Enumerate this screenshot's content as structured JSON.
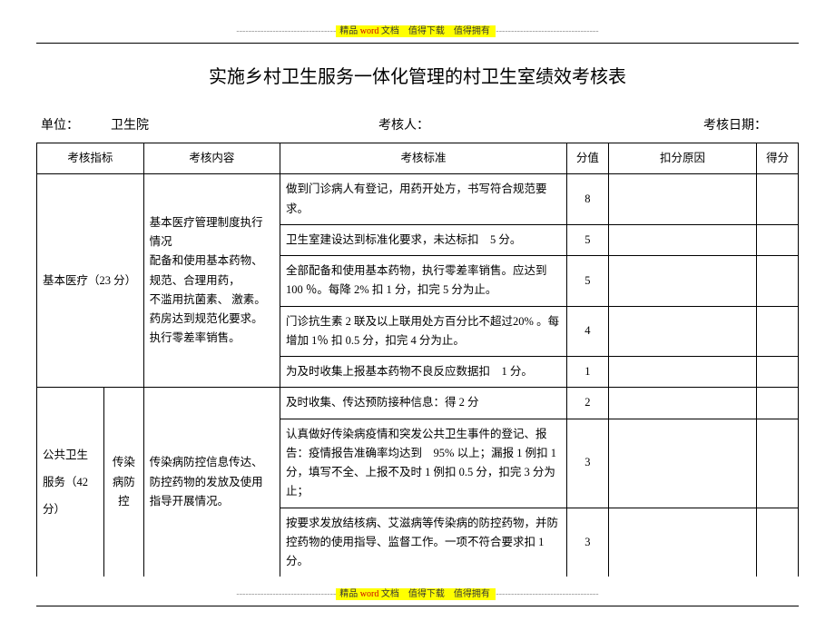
{
  "banner": {
    "dashes_left": "---------------------------------",
    "label": "精品",
    "word": "word",
    "doc": "文档",
    "down": "值得下载",
    "own": "值得拥有",
    "dashes_right": "----------------------------------"
  },
  "title": "实施乡村卫生服务一体化管理的村卫生室绩效考核表",
  "meta": {
    "unit_label": "单位：",
    "unit_value": "卫生院",
    "assessor_label": "考核人：",
    "date_label": "考核日期："
  },
  "headers": {
    "indicator": "考核指标",
    "content": "考核内容",
    "standard": "考核标准",
    "score": "分值",
    "reason": "扣分原因",
    "final": "得分"
  },
  "sections": {
    "basic_medical": {
      "label": "基本医疗（23 分）",
      "content": "基本医疗管理制度执行情况\n配备和使用基本药物、规范、合理用药，不滥用抗菌素、 激素。药房达到规范化要求。执行零差率销售。",
      "rows": [
        {
          "standard": "做到门诊病人有登记，用药开处方，书写符合规范要求。",
          "score": "8"
        },
        {
          "standard": "卫生室建设达到标准化要求，未达标扣　5 分。",
          "score": "5"
        },
        {
          "standard": "全部配备和使用基本药物，执行零差率销售。应达到 100 ％。每降 2% 扣 1 分，扣完 5 分为止。",
          "score": "5"
        },
        {
          "standard": "门诊抗生素 2 联及以上联用处方百分比不超过20% 。每增加 1％ 扣 0.5 分，扣完 4 分为止。",
          "score": "4"
        },
        {
          "standard": "为及时收集上报基本药物不良反应数据扣　1 分。",
          "score": "1"
        }
      ]
    },
    "public_health": {
      "label_line1": "公共卫生",
      "label_line2": "服务（42",
      "label_line3": "分）",
      "sub_label": "传染病防控",
      "content": "传染病防控信息传达、防控药物的发放及使用指导开展情况。",
      "rows": [
        {
          "standard": "及时收集、传达预防接种信息：得 2 分",
          "score": "2"
        },
        {
          "standard": "认真做好传染病疫情和突发公共卫生事件的登记、报告：疫情报告准确率均达到　95% 以上；漏报 1 例扣 1 分，填写不全、上报不及时 1 例扣 0.5 分，扣完 3 分为止；",
          "score": "3"
        },
        {
          "standard": "按要求发放结核病、艾滋病等传染病的防控药物，并防控药物的使用指导、监督工作。一项不符合要求扣 1 分。",
          "score": "3"
        }
      ]
    }
  },
  "style": {
    "bg": "#ffffff",
    "text": "#000000",
    "highlight_bg": "#ffff00",
    "banner_gray": "#999999",
    "word_red": "#cc0000",
    "font_body": 13,
    "font_title": 20
  }
}
